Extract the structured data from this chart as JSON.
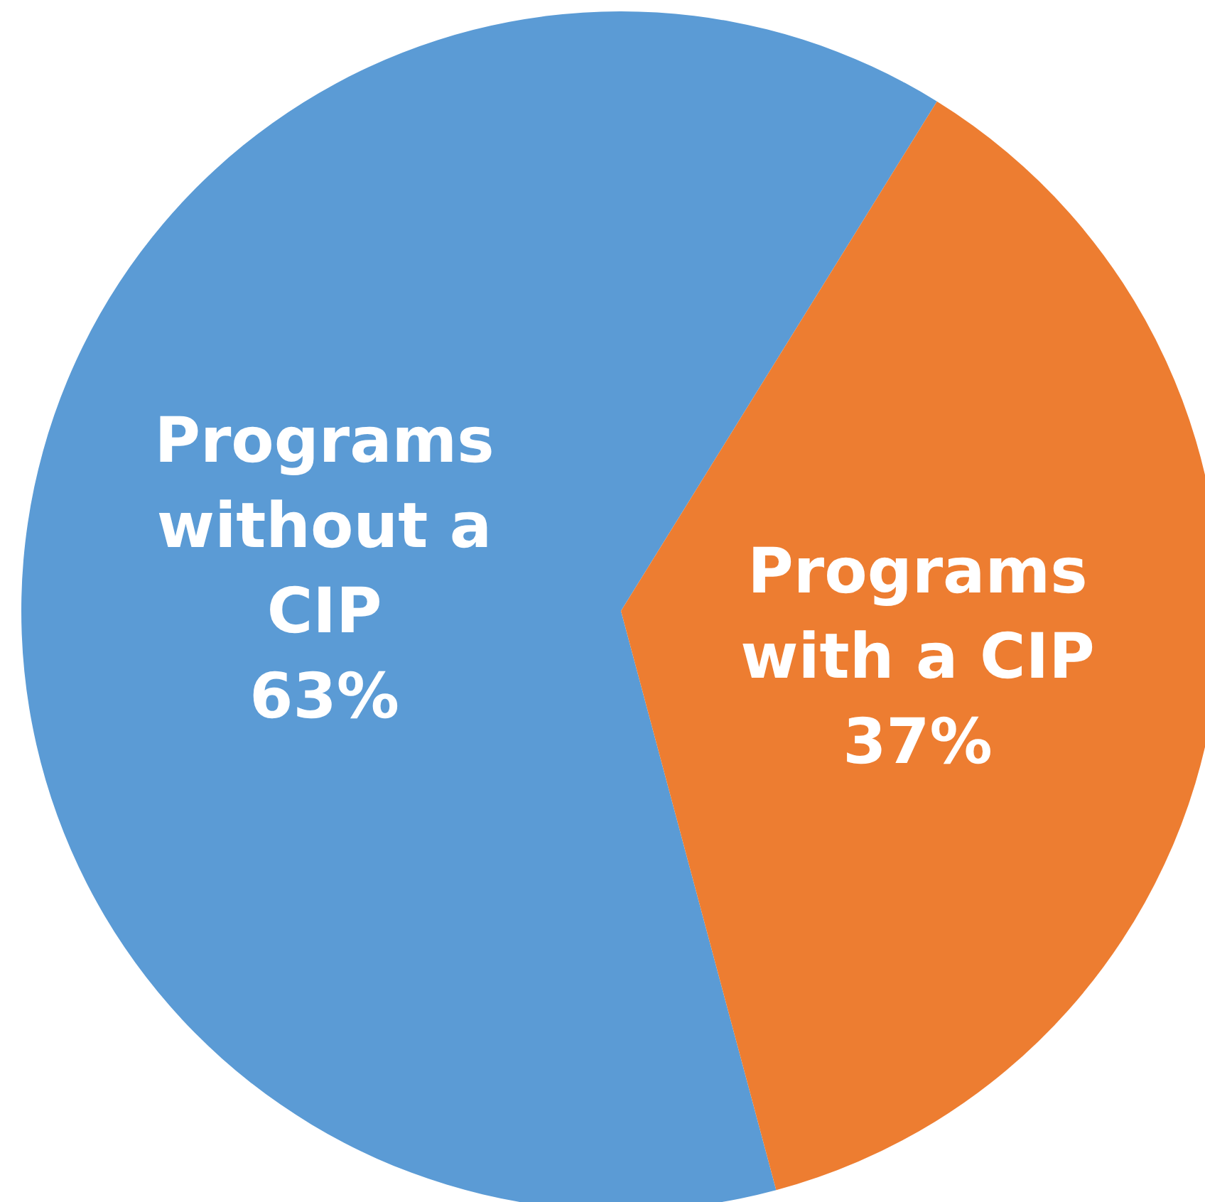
{
  "chart_data": {
    "type": "pie",
    "categories": [
      "Programs without a CIP",
      "Programs with a CIP"
    ],
    "values": [
      63,
      37
    ],
    "colors": [
      "#5b9bd5",
      "#ed7d31"
    ],
    "value_labels": [
      "63%",
      "37%"
    ]
  }
}
